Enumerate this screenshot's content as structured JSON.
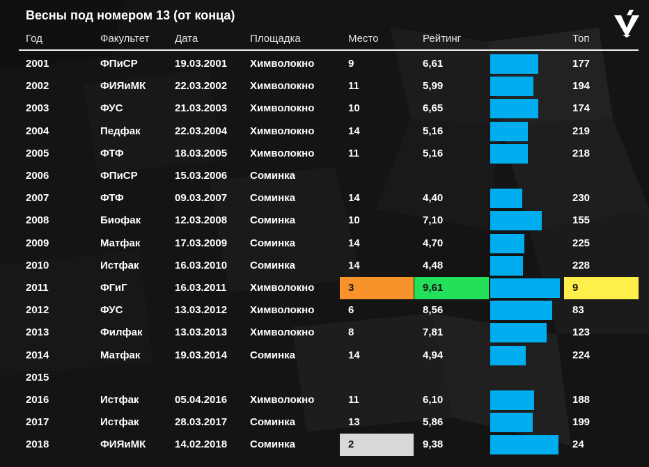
{
  "title": "Весны под номером 13 (от конца)",
  "columns": {
    "year": "Год",
    "faculty": "Факультет",
    "date": "Дата",
    "venue": "Площадка",
    "place": "Место",
    "rating": "Рейтинг",
    "top": "Топ"
  },
  "colors": {
    "bar": "#00aeef",
    "place_first_highlight": "#f7932a",
    "rating_highlight": "#22e05a",
    "top_highlight": "#ffef4a",
    "place_second_highlight": "#d9d9d9"
  },
  "rows": [
    {
      "year": "2001",
      "faculty": "ФПиСР",
      "date": "19.03.2001",
      "venue": "Химволокно",
      "place": "9",
      "rating": "6,61",
      "top": "177"
    },
    {
      "year": "2002",
      "faculty": "ФИЯиМК",
      "date": "22.03.2002",
      "venue": "Химволокно",
      "place": "11",
      "rating": "5,99",
      "top": "194"
    },
    {
      "year": "2003",
      "faculty": "ФУС",
      "date": "21.03.2003",
      "venue": "Химволокно",
      "place": "10",
      "rating": "6,65",
      "top": "174"
    },
    {
      "year": "2004",
      "faculty": "Педфак",
      "date": "22.03.2004",
      "venue": "Химволокно",
      "place": "14",
      "rating": "5,16",
      "top": "219"
    },
    {
      "year": "2005",
      "faculty": "ФТФ",
      "date": "18.03.2005",
      "venue": "Химволокно",
      "place": "11",
      "rating": "5,16",
      "top": "218"
    },
    {
      "year": "2006",
      "faculty": "ФПиСР",
      "date": "15.03.2006",
      "venue": "Соминка",
      "place": "",
      "rating": "",
      "top": ""
    },
    {
      "year": "2007",
      "faculty": "ФТФ",
      "date": "09.03.2007",
      "venue": "Соминка",
      "place": "14",
      "rating": "4,40",
      "top": "230"
    },
    {
      "year": "2008",
      "faculty": "Биофак",
      "date": "12.03.2008",
      "venue": "Соминка",
      "place": "10",
      "rating": "7,10",
      "top": "155"
    },
    {
      "year": "2009",
      "faculty": "Матфак",
      "date": "17.03.2009",
      "venue": "Соминка",
      "place": "14",
      "rating": "4,70",
      "top": "225"
    },
    {
      "year": "2010",
      "faculty": "Истфак",
      "date": "16.03.2010",
      "venue": "Соминка",
      "place": "14",
      "rating": "4,48",
      "top": "228"
    },
    {
      "year": "2011",
      "faculty": "ФГиГ",
      "date": "16.03.2011",
      "venue": "Химволокно",
      "place": "3",
      "rating": "9,61",
      "top": "9",
      "highlight": {
        "place": "#f7932a",
        "rating": "#22e05a",
        "top": "#ffef4a"
      }
    },
    {
      "year": "2012",
      "faculty": "ФУС",
      "date": "13.03.2012",
      "venue": "Химволокно",
      "place": "6",
      "rating": "8,56",
      "top": "83"
    },
    {
      "year": "2013",
      "faculty": "Филфак",
      "date": "13.03.2013",
      "venue": "Химволокно",
      "place": "8",
      "rating": "7,81",
      "top": "123"
    },
    {
      "year": "2014",
      "faculty": "Матфак",
      "date": "19.03.2014",
      "venue": "Соминка",
      "place": "14",
      "rating": "4,94",
      "top": "224"
    },
    {
      "year": "2015",
      "faculty": "",
      "date": "",
      "venue": "",
      "place": "",
      "rating": "",
      "top": ""
    },
    {
      "year": "2016",
      "faculty": "Истфак",
      "date": "05.04.2016",
      "venue": "Химволокно",
      "place": "11",
      "rating": "6,10",
      "top": "188"
    },
    {
      "year": "2017",
      "faculty": "Истфак",
      "date": "28.03.2017",
      "venue": "Соминка",
      "place": "13",
      "rating": "5,86",
      "top": "199"
    },
    {
      "year": "2018",
      "faculty": "ФИЯиМК",
      "date": "14.02.2018",
      "venue": "Соминка",
      "place": "2",
      "rating": "9,38",
      "top": "24",
      "highlight": {
        "place": "#d9d9d9"
      }
    }
  ],
  "chart_data": {
    "type": "bar",
    "orientation": "horizontal",
    "categories": [
      "2001",
      "2002",
      "2003",
      "2004",
      "2005",
      "2006",
      "2007",
      "2008",
      "2009",
      "2010",
      "2011",
      "2012",
      "2013",
      "2014",
      "2015",
      "2016",
      "2017",
      "2018"
    ],
    "values": [
      6.61,
      5.99,
      6.65,
      5.16,
      5.16,
      null,
      4.4,
      7.1,
      4.7,
      4.48,
      9.61,
      8.56,
      7.81,
      4.94,
      null,
      6.1,
      5.86,
      9.38
    ],
    "title": "Весны под номером 13 (от конца)",
    "ylabel": "Рейтинг",
    "xlim": [
      0,
      10
    ]
  }
}
